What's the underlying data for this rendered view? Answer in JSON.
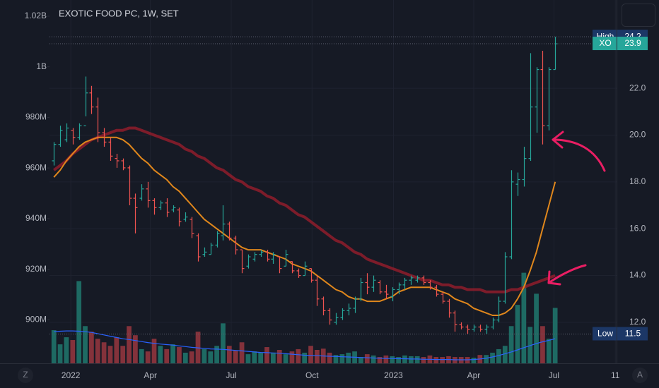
{
  "chart_data": {
    "type": "ohlc",
    "title": "EXOTIC FOOD PC, 1W, SET",
    "xlim": [
      -0.7,
      89.8
    ],
    "xticks": [
      {
        "value": 2.7,
        "label": "2022"
      },
      {
        "value": 15.4,
        "label": "Apr"
      },
      {
        "value": 28.3,
        "label": "Jul"
      },
      {
        "value": 41.2,
        "label": "Oct"
      },
      {
        "value": 54.2,
        "label": "2023"
      },
      {
        "value": 67.0,
        "label": "Apr"
      },
      {
        "value": 79.8,
        "label": "Jul"
      },
      {
        "value": 89.6,
        "label": "11"
      }
    ],
    "ylim": [
      10.25,
      25.77
    ],
    "yticks": [
      {
        "value": 12,
        "label": "12.0"
      },
      {
        "value": 14,
        "label": "14.0"
      },
      {
        "value": 16,
        "label": "16.0"
      },
      {
        "value": 18,
        "label": "18.0"
      },
      {
        "value": 20,
        "label": "20.0"
      },
      {
        "value": 22,
        "label": "22.0"
      }
    ],
    "y2lim": [
      882.8,
      1026.4
    ],
    "y2ticks": [
      {
        "value": 900,
        "label": "900M"
      },
      {
        "value": 920,
        "label": "920M"
      },
      {
        "value": 940,
        "label": "940M"
      },
      {
        "value": 960,
        "label": "960M"
      },
      {
        "value": 980,
        "label": "980M"
      },
      {
        "value": 1000,
        "label": "1B"
      },
      {
        "value": 1020,
        "label": "1.02B"
      }
    ],
    "grid": true,
    "ohlc": {
      "up_color": "#26a69a",
      "down_color": "#ef5350",
      "open": [
        18.9,
        19.6,
        19.8,
        20.2,
        19.9,
        20.4,
        21.8,
        21.2,
        20.1,
        19.7,
        19.0,
        18.9,
        18.6,
        17.3,
        17.3,
        17.7,
        17.2,
        16.9,
        17.1,
        16.8,
        16.8,
        16.4,
        16.4,
        15.7,
        14.9,
        14.9,
        15.3,
        15.7,
        16.2,
        15.6,
        15.1,
        14.4,
        14.7,
        14.9,
        15.0,
        14.7,
        14.8,
        14.4,
        14.6,
        14.2,
        14.0,
        14.3,
        13.8,
        13.0,
        12.5,
        12.0,
        12.2,
        12.5,
        12.6,
        13.0,
        13.7,
        13.5,
        13.7,
        13.3,
        13.1,
        13.4,
        13.6,
        13.8,
        13.8,
        13.9,
        13.7,
        13.5,
        13.2,
        12.9,
        12.4,
        11.9,
        11.8,
        11.7,
        11.8,
        11.7,
        11.8,
        12.1,
        12.9,
        14.8,
        17.9,
        18.1,
        19.0,
        21.2,
        22.8,
        20.4,
        22.8
      ],
      "high": [
        19.7,
        20.4,
        20.5,
        20.3,
        20.5,
        22.5,
        22.1,
        21.6,
        20.3,
        19.9,
        19.2,
        19.0,
        18.7,
        17.5,
        17.9,
        18.0,
        17.3,
        17.2,
        17.3,
        17.0,
        16.9,
        16.7,
        16.5,
        15.8,
        15.2,
        15.4,
        15.9,
        17.0,
        16.3,
        15.7,
        15.1,
        14.9,
        15.0,
        15.1,
        15.1,
        15.0,
        14.8,
        15.1,
        14.6,
        14.3,
        14.6,
        14.3,
        14.0,
        13.1,
        12.6,
        12.4,
        12.6,
        12.8,
        13.1,
        13.9,
        14.1,
        14.0,
        13.8,
        13.6,
        13.5,
        13.7,
        13.9,
        14.0,
        14.0,
        14.0,
        13.8,
        13.6,
        13.3,
        13.0,
        12.5,
        12.0,
        11.9,
        11.9,
        11.9,
        11.9,
        12.2,
        13.1,
        15.0,
        18.5,
        18.4,
        19.5,
        23.5,
        22.9,
        23.6,
        22.9,
        24.2
      ],
      "low": [
        18.7,
        19.5,
        19.7,
        19.6,
        19.8,
        20.8,
        20.9,
        19.7,
        19.5,
        18.9,
        18.6,
        18.5,
        17.0,
        15.8,
        17.2,
        16.9,
        16.6,
        16.8,
        16.5,
        16.7,
        16.1,
        16.3,
        15.6,
        14.6,
        14.8,
        14.9,
        15.2,
        15.5,
        15.5,
        14.9,
        14.1,
        14.3,
        14.6,
        14.8,
        14.6,
        14.5,
        14.1,
        14.4,
        14.1,
        13.9,
        14.0,
        13.7,
        12.7,
        12.3,
        11.9,
        11.9,
        12.1,
        12.3,
        12.4,
        12.9,
        13.2,
        13.3,
        13.2,
        13.0,
        12.9,
        13.2,
        13.4,
        13.6,
        13.7,
        13.6,
        13.4,
        13.1,
        12.8,
        12.2,
        11.6,
        11.7,
        11.5,
        11.6,
        11.6,
        11.5,
        11.7,
        12.0,
        12.8,
        14.7,
        17.4,
        17.8,
        18.9,
        20.1,
        19.6,
        20.2,
        22.8
      ],
      "close": [
        19.6,
        20.2,
        20.3,
        19.9,
        20.4,
        21.8,
        21.2,
        20.1,
        19.7,
        19.1,
        18.9,
        18.6,
        17.3,
        16.9,
        17.7,
        17.2,
        16.9,
        17.1,
        16.7,
        16.9,
        16.3,
        16.5,
        15.8,
        14.8,
        15.0,
        15.3,
        15.8,
        16.2,
        15.6,
        15.1,
        14.3,
        14.8,
        14.9,
        15.0,
        14.7,
        14.9,
        14.3,
        14.9,
        14.2,
        14.0,
        14.4,
        13.8,
        13.0,
        12.5,
        12.1,
        12.2,
        12.5,
        12.6,
        13.0,
        13.7,
        13.5,
        13.8,
        13.3,
        13.2,
        13.4,
        13.6,
        13.8,
        13.9,
        13.9,
        13.7,
        13.5,
        13.2,
        12.9,
        12.4,
        11.9,
        11.8,
        11.7,
        11.8,
        11.7,
        11.8,
        12.1,
        12.9,
        14.8,
        18.0,
        18.1,
        19.0,
        21.2,
        22.8,
        20.4,
        22.8,
        23.9
      ]
    },
    "volume": {
      "axis": "y2",
      "up_color": "#1f6f66",
      "down_color": "#8a343c",
      "values": [
        895.9,
        890.3,
        893.1,
        892.0,
        915.3,
        897.5,
        895.3,
        892.5,
        891.1,
        889.7,
        893.1,
        889.7,
        897.5,
        893.9,
        888.4,
        887.5,
        892.5,
        889.7,
        888.4,
        890.3,
        889.2,
        887.0,
        887.5,
        895.3,
        888.4,
        887.5,
        889.7,
        898.6,
        889.7,
        887.8,
        891.1,
        886.4,
        887.5,
        887.0,
        889.2,
        887.0,
        888.1,
        886.4,
        887.5,
        888.4,
        887.0,
        889.7,
        888.1,
        888.6,
        887.0,
        886.1,
        886.4,
        887.0,
        887.5,
        885.3,
        886.4,
        885.9,
        885.3,
        885.9,
        885.6,
        885.3,
        885.9,
        885.6,
        885.6,
        885.3,
        885.9,
        885.3,
        885.3,
        885.6,
        885.3,
        885.3,
        885.3,
        885.0,
        886.1,
        886.1,
        887.0,
        888.4,
        889.7,
        897.5,
        905.9,
        918.6,
        897.2,
        910.3,
        897.5,
        892.5,
        904.7
      ]
    },
    "series": [
      {
        "color": "#8f1d2c",
        "values": [
          18.5,
          18.7,
          18.9,
          19.2,
          19.4,
          19.6,
          19.8,
          19.9,
          20.0,
          20.1,
          20.2,
          20.2,
          20.3,
          20.3,
          20.2,
          20.1,
          20.0,
          19.9,
          19.8,
          19.7,
          19.6,
          19.4,
          19.3,
          19.1,
          19.0,
          18.8,
          18.6,
          18.5,
          18.3,
          18.1,
          18.0,
          17.8,
          17.7,
          17.6,
          17.4,
          17.3,
          17.1,
          17.0,
          16.8,
          16.6,
          16.5,
          16.3,
          16.1,
          15.9,
          15.7,
          15.5,
          15.4,
          15.2,
          15.0,
          14.9,
          14.7,
          14.6,
          14.5,
          14.4,
          14.3,
          14.2,
          14.1,
          14.0,
          13.9,
          13.8,
          13.8,
          13.7,
          13.6,
          13.6,
          13.5,
          13.5,
          13.4,
          13.4,
          13.4,
          13.3,
          13.3,
          13.3,
          13.3,
          13.4,
          13.4,
          13.5,
          13.6,
          13.7,
          13.8,
          13.9,
          14.0
        ]
      },
      {
        "color": "#e0871c",
        "values": [
          18.2,
          18.5,
          18.9,
          19.2,
          19.5,
          19.7,
          19.8,
          19.9,
          19.9,
          19.9,
          19.9,
          19.8,
          19.6,
          19.3,
          19.0,
          18.8,
          18.5,
          18.3,
          18.1,
          17.8,
          17.6,
          17.3,
          17.0,
          16.7,
          16.4,
          16.2,
          16.0,
          15.8,
          15.6,
          15.4,
          15.2,
          15.1,
          15.1,
          15.1,
          15.0,
          14.9,
          14.8,
          14.7,
          14.5,
          14.4,
          14.3,
          14.2,
          14.0,
          13.8,
          13.6,
          13.4,
          13.3,
          13.1,
          13.0,
          13.0,
          12.9,
          12.9,
          12.9,
          13.0,
          13.1,
          13.3,
          13.4,
          13.5,
          13.5,
          13.5,
          13.5,
          13.4,
          13.3,
          13.2,
          13.0,
          12.9,
          12.8,
          12.6,
          12.5,
          12.4,
          12.3,
          12.3,
          12.4,
          12.6,
          13.0,
          13.5,
          14.2,
          15.0,
          16.0,
          17.0,
          18.0
        ]
      },
      {
        "color": "#2962ff",
        "axis": "y2",
        "values": [
          895.3,
          895.5,
          895.6,
          895.6,
          895.5,
          895.3,
          895.0,
          894.5,
          894.0,
          893.5,
          893.0,
          892.5,
          892.2,
          891.8,
          891.4,
          891.0,
          890.7,
          890.4,
          890.2,
          890.0,
          889.7,
          889.4,
          889.1,
          888.9,
          888.7,
          888.5,
          888.4,
          888.3,
          888.1,
          887.9,
          887.7,
          887.5,
          887.3,
          887.1,
          887.0,
          886.9,
          886.8,
          886.6,
          886.4,
          886.2,
          886.0,
          885.9,
          885.8,
          885.7,
          885.6,
          885.5,
          885.4,
          885.3,
          885.2,
          885.1,
          885.0,
          884.9,
          884.8,
          884.7,
          884.7,
          884.6,
          884.6,
          884.5,
          884.5,
          884.4,
          884.4,
          884.3,
          884.3,
          884.3,
          884.2,
          884.2,
          884.2,
          884.3,
          884.5,
          884.8,
          885.3,
          885.9,
          886.6,
          887.3,
          888.1,
          889.0,
          889.8,
          890.6,
          891.3,
          891.9,
          892.5
        ]
      }
    ],
    "markers": [
      {
        "label": "High",
        "value": 24.2,
        "color": "#1c3766",
        "value_color": "#1c3766"
      },
      {
        "label": "XO",
        "value": 23.9,
        "color": "#26a69a",
        "value_color": "#26a69a"
      },
      {
        "label": "Low",
        "value": 11.5,
        "color": "#1c3766",
        "value_color": "#1c3766"
      }
    ]
  },
  "ui": {
    "left_button": "Z",
    "right_button": "A"
  }
}
